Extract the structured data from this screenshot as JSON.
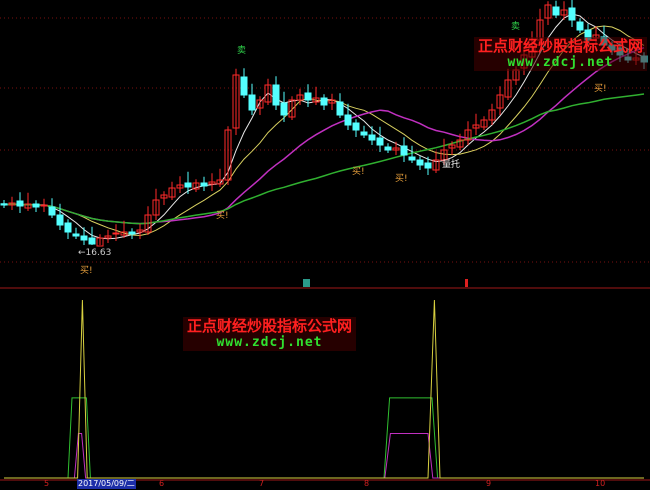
{
  "chart_data": {
    "type": "candlestick",
    "title": "",
    "colors": {
      "up": "#ff2a2a",
      "down": "#54ffff",
      "ma5": "#e8e8e8",
      "ma10": "#d8d060",
      "ma20": "#c030c0",
      "ma60": "#30b030",
      "grid": "#7a1010"
    },
    "closes": [
      18.23,
      18.31,
      18.19,
      18.27,
      18.15,
      18.23,
      17.83,
      17.43,
      17.15,
      16.99,
      16.83,
      16.67,
      16.91,
      16.99,
      17.11,
      17.15,
      17.07,
      17.23,
      17.83,
      18.43,
      18.63,
      18.91,
      19.03,
      18.95,
      19.11,
      18.99,
      19.15,
      19.23,
      21.23,
      23.43,
      22.63,
      22.03,
      22.43,
      23.03,
      22.23,
      21.83,
      22.43,
      22.63,
      22.43,
      22.51,
      22.23,
      22.43,
      21.83,
      21.43,
      21.23,
      21.03,
      20.83,
      20.63,
      20.43,
      20.51,
      20.23,
      20.03,
      19.83,
      19.71,
      20.03,
      20.43,
      20.63,
      20.83,
      21.23,
      21.43,
      21.63,
      22.03,
      22.63,
      23.23,
      23.63,
      24.23,
      24.83,
      25.63,
      26.23,
      25.83,
      26.03,
      25.63,
      25.23,
      24.83,
      25.03,
      24.63,
      24.43,
      24.23,
      24.03,
      24.11,
      23.95
    ],
    "low_label": "←16.63",
    "ma_periods": [
      5,
      10,
      20,
      60
    ],
    "x_ticks": [
      "5",
      "6",
      "7",
      "8",
      "9",
      "10"
    ],
    "cursor_date": "2017/05/09/二",
    "signals": {
      "buy": [
        "买!",
        "买!",
        "买!",
        "买!",
        "买!"
      ],
      "sell": [
        "卖",
        "卖"
      ],
      "support": "量托"
    },
    "indicator": {
      "ylim": [
        0,
        100
      ],
      "green": [
        [
          0,
          0
        ],
        [
          8,
          0
        ],
        [
          8.5,
          45
        ],
        [
          10.3,
          45
        ],
        [
          10.8,
          0
        ],
        [
          47.5,
          0
        ],
        [
          48.2,
          45
        ],
        [
          53.5,
          45
        ],
        [
          54.2,
          0
        ],
        [
          80,
          0
        ]
      ],
      "magenta": [
        [
          0,
          0
        ],
        [
          8.8,
          0
        ],
        [
          9.3,
          25
        ],
        [
          9.7,
          25
        ],
        [
          10.2,
          0
        ],
        [
          47.6,
          0
        ],
        [
          48.3,
          25
        ],
        [
          53,
          25
        ],
        [
          53.6,
          0
        ],
        [
          80,
          0
        ]
      ],
      "yellow": [
        [
          0,
          0
        ],
        [
          9.2,
          0
        ],
        [
          9.8,
          100
        ],
        [
          10.4,
          0
        ],
        [
          48.5,
          0
        ],
        [
          48.5,
          0
        ],
        [
          53,
          0
        ],
        [
          53.8,
          100
        ],
        [
          54.5,
          0
        ],
        [
          80,
          0
        ]
      ]
    }
  },
  "watermark": {
    "title": "正点财经炒股指标公式网",
    "url": "www.zdcj.net"
  }
}
